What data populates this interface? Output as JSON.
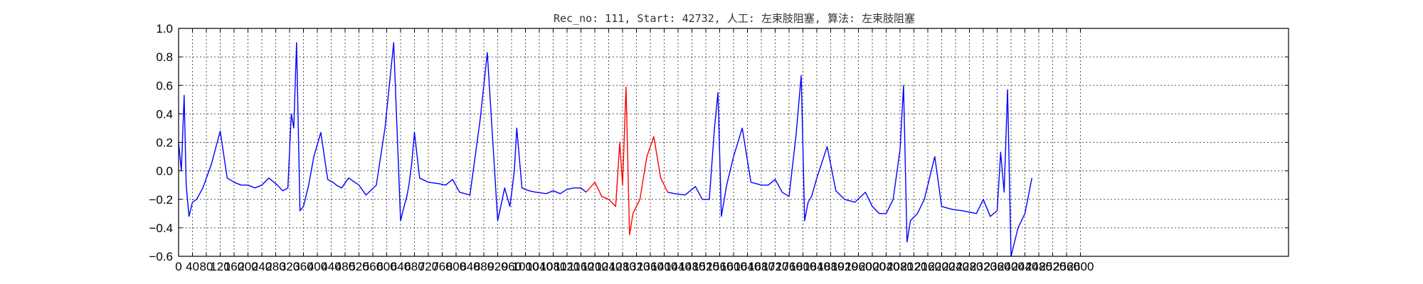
{
  "chart_data": {
    "type": "line",
    "title": "Rec_no: 111, Start: 42732, 人工: 左束肢阻塞, 算法: 左束肢阻塞",
    "xlabel": "",
    "ylabel": "",
    "xlim": [
      0,
      3200
    ],
    "ylim": [
      -0.6,
      1.0
    ],
    "yticks": [
      -0.6,
      -0.4,
      -0.2,
      0.0,
      0.2,
      0.4,
      0.6,
      0.8,
      1.0
    ],
    "ytick_labels": [
      "−0.6",
      "−0.4",
      "−0.2",
      "0.0",
      "0.2",
      "0.4",
      "0.6",
      "0.8",
      "1.0"
    ],
    "xticks": [
      0,
      40,
      80,
      120,
      160,
      200,
      240,
      280,
      320,
      360,
      400,
      440,
      480,
      520,
      560,
      600,
      640,
      680,
      720,
      760,
      800,
      840,
      880,
      920,
      960,
      1000,
      1040,
      1080,
      1120,
      1160,
      1200,
      1240,
      1280,
      1320,
      1360,
      1400,
      1440,
      1480,
      1520,
      1560,
      1600,
      1640,
      1680,
      1720,
      1760,
      1800,
      1840,
      1880,
      1920,
      1960,
      2000,
      2040,
      2080,
      2120,
      2160,
      2200,
      2240,
      2280,
      2320,
      2360,
      2400,
      2440,
      2480,
      2520,
      2560,
      2600
    ],
    "xtick_labels": [
      "0",
      "40",
      "80",
      "120",
      "160",
      "200",
      "240",
      "280",
      "320",
      "360",
      "400",
      "440",
      "480",
      "520",
      "560",
      "600",
      "640",
      "680",
      "720",
      "760",
      "800",
      "840",
      "880",
      "920",
      "960",
      "1000",
      "1040",
      "1080",
      "1120",
      "1160",
      "1200",
      "1240",
      "1280",
      "1320",
      "1360",
      "1400",
      "1440",
      "1480",
      "1520",
      "1560",
      "1600",
      "1640",
      "1680",
      "1720",
      "1760",
      "1800",
      "1840",
      "1880",
      "1920",
      "1960",
      "2000",
      "2040",
      "2080",
      "2120",
      "2160",
      "2200",
      "2240",
      "2280",
      "2320",
      "2360",
      "2400",
      "2440",
      "2480",
      "2520",
      "2560",
      "2600"
    ],
    "grid": true,
    "series": [
      {
        "color": "#0000ff",
        "x": [
          0,
          8,
          16,
          22,
          30,
          40,
          52,
          70,
          95,
          120,
          140,
          160,
          180,
          200,
          220,
          240,
          260,
          285,
          300,
          315,
          325,
          332,
          340,
          350,
          360,
          375,
          390,
          410,
          430,
          445,
          455,
          470,
          490,
          520,
          540,
          570,
          595,
          620,
          640,
          650,
          658,
          664,
          672,
          680,
          695,
          720,
          750,
          770,
          790,
          810,
          840,
          870,
          890,
          920,
          940,
          955,
          962,
          968,
          975,
          990,
          1010,
          1030,
          1060,
          1080,
          1100,
          1120,
          1140,
          1160,
          1175
        ],
        "y": [
          0.2,
          0.0,
          0.53,
          -0.1,
          -0.32,
          -0.22,
          -0.2,
          -0.12,
          0.05,
          0.28,
          -0.05,
          -0.08,
          -0.1,
          -0.1,
          -0.12,
          -0.1,
          -0.05,
          -0.1,
          -0.14,
          -0.12,
          0.4,
          0.3,
          0.9,
          -0.28,
          -0.25,
          -0.1,
          0.1,
          0.27,
          -0.06,
          -0.08,
          -0.1,
          -0.12,
          -0.05,
          -0.1,
          -0.17,
          -0.1,
          0.3,
          0.9,
          -0.35,
          -0.25,
          -0.18,
          -0.1,
          0.05,
          0.27,
          -0.05,
          -0.08,
          -0.09,
          -0.1,
          -0.06,
          -0.15,
          -0.17,
          0.37,
          0.83,
          -0.35,
          -0.12,
          -0.25,
          -0.12,
          0.0,
          0.3,
          -0.12,
          -0.14,
          -0.15,
          -0.16,
          -0.14,
          -0.16,
          -0.13,
          -0.12,
          -0.12,
          -0.15
        ]
      },
      {
        "color": "#ff0000",
        "x": [
          1175,
          1200,
          1220,
          1240,
          1260,
          1272,
          1280,
          1290,
          1300,
          1310,
          1330,
          1350,
          1370,
          1390,
          1410
        ],
        "y": [
          -0.15,
          -0.08,
          -0.18,
          -0.2,
          -0.25,
          0.2,
          -0.1,
          0.59,
          -0.45,
          -0.3,
          -0.2,
          0.1,
          0.24,
          -0.05,
          -0.15
        ]
      },
      {
        "color": "#0000ff",
        "x": [
          1410,
          1430,
          1460,
          1490,
          1510,
          1530,
          1545,
          1555,
          1565,
          1580,
          1600,
          1625,
          1650,
          1680,
          1700,
          1720,
          1740,
          1760,
          1780,
          1795,
          1805,
          1815,
          1825,
          1840,
          1870,
          1895,
          1920,
          1950,
          1980,
          2000,
          2020,
          2040,
          2060,
          2080,
          2090,
          2100,
          2110,
          2130,
          2150,
          2180,
          2200,
          2230,
          2260,
          2300,
          2320,
          2340,
          2360,
          2370,
          2380,
          2390,
          2400,
          2420,
          2440,
          2460
        ],
        "y": [
          -0.15,
          -0.16,
          -0.17,
          -0.11,
          -0.2,
          -0.2,
          0.3,
          0.55,
          -0.32,
          -0.1,
          0.1,
          0.3,
          -0.08,
          -0.1,
          -0.1,
          -0.06,
          -0.15,
          -0.18,
          0.25,
          0.67,
          -0.35,
          -0.22,
          -0.18,
          -0.05,
          0.17,
          -0.14,
          -0.2,
          -0.22,
          -0.15,
          -0.25,
          -0.3,
          -0.3,
          -0.2,
          0.15,
          0.6,
          -0.5,
          -0.35,
          -0.3,
          -0.2,
          0.1,
          -0.25,
          -0.27,
          -0.28,
          -0.3,
          -0.2,
          -0.32,
          -0.28,
          0.13,
          -0.15,
          0.57,
          -0.6,
          -0.4,
          -0.3,
          -0.05
        ]
      }
    ]
  }
}
